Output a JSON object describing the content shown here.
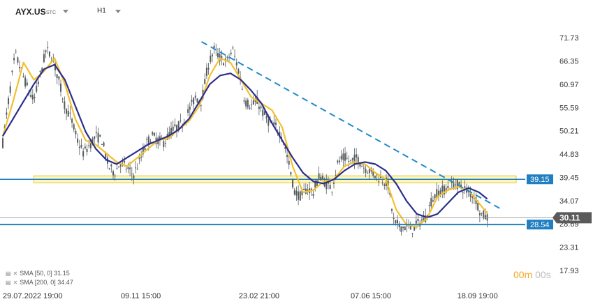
{
  "header": {
    "symbol": "AYX.US",
    "symbol_suffix": "STC",
    "timeframe": "H1"
  },
  "timer": {
    "minutes": "00m",
    "seconds": "00s"
  },
  "indicators": [
    {
      "label": "SMA [50, 0] 31.15"
    },
    {
      "label": "SMA [200, 0] 34.47"
    }
  ],
  "colors": {
    "candles": "#555b5f",
    "sma50": "#f2c12e",
    "sma200": "#2b2f8c",
    "trendline": "#1f8ac9",
    "support": "#1f7fc0",
    "zone_fill": "#fff4a8",
    "zone_border": "#e0c43a",
    "price_box": "#5a5a5a",
    "timer_minutes": "#f5a623"
  },
  "chart_data": {
    "type": "candlestick",
    "symbol": "AYX.US",
    "timeframe": "H1",
    "y_ticks": [
      71.73,
      66.35,
      60.97,
      55.59,
      50.21,
      44.83,
      39.45,
      34.07,
      28.69,
      23.31,
      17.93
    ],
    "ylim": [
      16.0,
      74.0
    ],
    "x_ticks": [
      "29.07.2022  19:00",
      "09.11  15:00",
      "23.02  21:00",
      "07.06  15:00",
      "18.09  19:00"
    ],
    "x_tick_positions": [
      0.0,
      0.228,
      0.456,
      0.672,
      0.878
    ],
    "price_path": [
      [
        0.0,
        47.5
      ],
      [
        0.012,
        58
      ],
      [
        0.024,
        68
      ],
      [
        0.036,
        64
      ],
      [
        0.048,
        60
      ],
      [
        0.06,
        57
      ],
      [
        0.072,
        63
      ],
      [
        0.084,
        69
      ],
      [
        0.096,
        67
      ],
      [
        0.108,
        62
      ],
      [
        0.12,
        56
      ],
      [
        0.132,
        53
      ],
      [
        0.144,
        48
      ],
      [
        0.156,
        45
      ],
      [
        0.168,
        47
      ],
      [
        0.18,
        49
      ],
      [
        0.192,
        48
      ],
      [
        0.204,
        42
      ],
      [
        0.216,
        40.5
      ],
      [
        0.228,
        43
      ],
      [
        0.24,
        41.5
      ],
      [
        0.252,
        40
      ],
      [
        0.264,
        43
      ],
      [
        0.276,
        47
      ],
      [
        0.288,
        49
      ],
      [
        0.3,
        48
      ],
      [
        0.312,
        47.5
      ],
      [
        0.324,
        50
      ],
      [
        0.336,
        51
      ],
      [
        0.348,
        52
      ],
      [
        0.36,
        55
      ],
      [
        0.372,
        58
      ],
      [
        0.384,
        57
      ],
      [
        0.396,
        65
      ],
      [
        0.408,
        69
      ],
      [
        0.42,
        67
      ],
      [
        0.432,
        66
      ],
      [
        0.444,
        69
      ],
      [
        0.456,
        64
      ],
      [
        0.468,
        57
      ],
      [
        0.48,
        56
      ],
      [
        0.492,
        57
      ],
      [
        0.504,
        54
      ],
      [
        0.516,
        52
      ],
      [
        0.528,
        51
      ],
      [
        0.54,
        49
      ],
      [
        0.552,
        43
      ],
      [
        0.564,
        36
      ],
      [
        0.576,
        35
      ],
      [
        0.588,
        37
      ],
      [
        0.6,
        36
      ],
      [
        0.612,
        40
      ],
      [
        0.624,
        38
      ],
      [
        0.636,
        37
      ],
      [
        0.648,
        43
      ],
      [
        0.66,
        44
      ],
      [
        0.672,
        43
      ],
      [
        0.684,
        44
      ],
      [
        0.696,
        42
      ],
      [
        0.708,
        41
      ],
      [
        0.72,
        40
      ],
      [
        0.732,
        39
      ],
      [
        0.744,
        38
      ],
      [
        0.756,
        29
      ],
      [
        0.768,
        28
      ],
      [
        0.78,
        28
      ],
      [
        0.792,
        27.5
      ],
      [
        0.804,
        29
      ],
      [
        0.816,
        30
      ],
      [
        0.828,
        34
      ],
      [
        0.84,
        36
      ],
      [
        0.852,
        36.5
      ],
      [
        0.864,
        37.5
      ],
      [
        0.876,
        38
      ],
      [
        0.888,
        37
      ],
      [
        0.9,
        36
      ],
      [
        0.912,
        35
      ],
      [
        0.924,
        31
      ],
      [
        0.936,
        30.11
      ]
    ],
    "series": [
      {
        "name": "SMA [50, 0]",
        "last_value": 31.15,
        "points": [
          [
            0.0,
            49
          ],
          [
            0.02,
            57
          ],
          [
            0.04,
            66
          ],
          [
            0.06,
            62
          ],
          [
            0.08,
            64
          ],
          [
            0.1,
            67
          ],
          [
            0.12,
            61
          ],
          [
            0.14,
            53
          ],
          [
            0.16,
            48
          ],
          [
            0.18,
            47
          ],
          [
            0.2,
            45
          ],
          [
            0.22,
            43
          ],
          [
            0.24,
            42
          ],
          [
            0.26,
            44
          ],
          [
            0.28,
            46
          ],
          [
            0.3,
            48
          ],
          [
            0.32,
            48.5
          ],
          [
            0.34,
            50.5
          ],
          [
            0.36,
            52.5
          ],
          [
            0.38,
            56
          ],
          [
            0.4,
            63
          ],
          [
            0.42,
            67
          ],
          [
            0.44,
            66
          ],
          [
            0.46,
            62
          ],
          [
            0.48,
            58
          ],
          [
            0.5,
            56.5
          ],
          [
            0.52,
            55
          ],
          [
            0.54,
            51
          ],
          [
            0.56,
            42
          ],
          [
            0.58,
            36
          ],
          [
            0.6,
            36.5
          ],
          [
            0.62,
            38.5
          ],
          [
            0.64,
            39
          ],
          [
            0.66,
            42
          ],
          [
            0.68,
            43
          ],
          [
            0.7,
            42.5
          ],
          [
            0.72,
            40.5
          ],
          [
            0.74,
            39
          ],
          [
            0.76,
            32
          ],
          [
            0.78,
            28.5
          ],
          [
            0.8,
            28
          ],
          [
            0.82,
            30
          ],
          [
            0.84,
            35
          ],
          [
            0.86,
            36.5
          ],
          [
            0.88,
            37.3
          ],
          [
            0.9,
            36.5
          ],
          [
            0.92,
            33.5
          ],
          [
            0.936,
            31.15
          ]
        ]
      },
      {
        "name": "SMA [200, 0]",
        "last_value": 34.47,
        "points": [
          [
            0.0,
            49
          ],
          [
            0.03,
            55
          ],
          [
            0.06,
            61
          ],
          [
            0.08,
            64.5
          ],
          [
            0.1,
            65.5
          ],
          [
            0.12,
            62
          ],
          [
            0.14,
            56
          ],
          [
            0.16,
            50
          ],
          [
            0.18,
            46
          ],
          [
            0.2,
            43.5
          ],
          [
            0.22,
            42.5
          ],
          [
            0.24,
            44
          ],
          [
            0.26,
            45.5
          ],
          [
            0.28,
            47
          ],
          [
            0.3,
            48
          ],
          [
            0.32,
            49
          ],
          [
            0.34,
            50.5
          ],
          [
            0.36,
            53
          ],
          [
            0.38,
            57
          ],
          [
            0.4,
            61
          ],
          [
            0.42,
            63
          ],
          [
            0.44,
            63.5
          ],
          [
            0.46,
            62
          ],
          [
            0.48,
            59.5
          ],
          [
            0.5,
            56.5
          ],
          [
            0.52,
            52
          ],
          [
            0.54,
            48
          ],
          [
            0.56,
            44
          ],
          [
            0.58,
            40.5
          ],
          [
            0.6,
            38.5
          ],
          [
            0.62,
            38
          ],
          [
            0.64,
            39
          ],
          [
            0.66,
            41
          ],
          [
            0.68,
            42.5
          ],
          [
            0.7,
            43
          ],
          [
            0.72,
            42.5
          ],
          [
            0.74,
            41
          ],
          [
            0.76,
            38
          ],
          [
            0.78,
            34
          ],
          [
            0.8,
            31
          ],
          [
            0.82,
            30.2
          ],
          [
            0.84,
            31
          ],
          [
            0.86,
            33.5
          ],
          [
            0.88,
            36
          ],
          [
            0.9,
            37
          ],
          [
            0.92,
            36
          ],
          [
            0.936,
            34.47
          ]
        ]
      }
    ],
    "annotations": {
      "trendline": {
        "start": [
          0.384,
          70.8
        ],
        "end": [
          0.96,
          32.3
        ],
        "style": "dashed"
      },
      "resistance_zone": {
        "x_start": 0.06,
        "y_low": 38.2,
        "y_high": 39.8,
        "label": "39.15"
      },
      "support_line": {
        "value": 28.54,
        "label": "28.54"
      },
      "current_price": {
        "value": 30.11,
        "label": "30.11"
      }
    }
  }
}
